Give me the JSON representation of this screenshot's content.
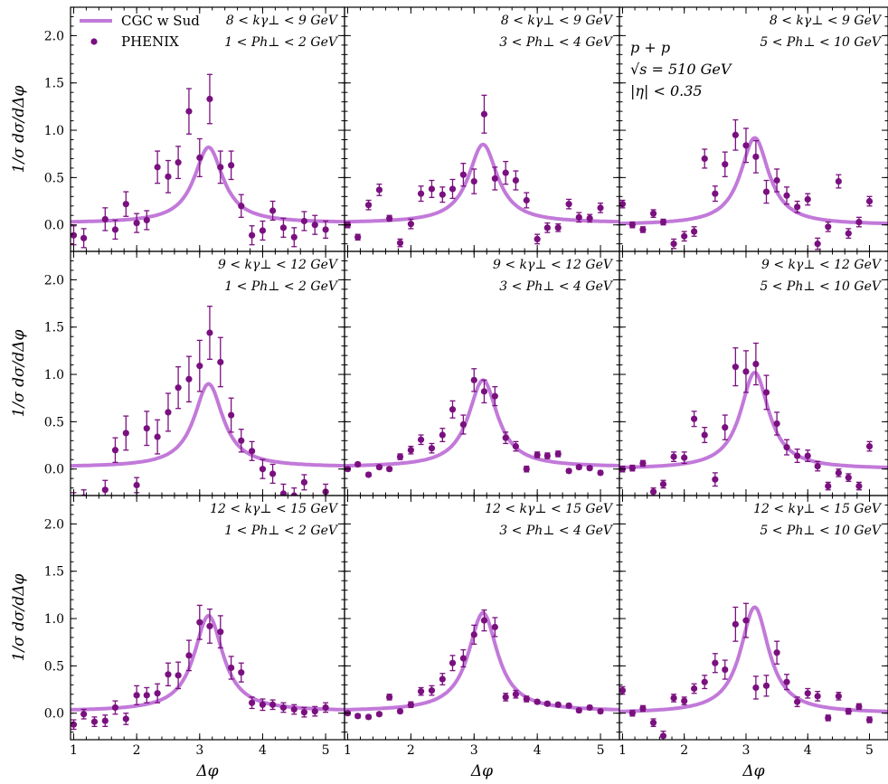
{
  "chart_data": {
    "type": "scatter",
    "layout": "3x3 panel grid",
    "xlabel": "Δφ",
    "ylabel": "1/σ dσ/dΔφ",
    "xlim": [
      0.95,
      5.3
    ],
    "ylim": [
      -0.28,
      2.3
    ],
    "xticks": [
      1,
      2,
      3,
      4,
      5
    ],
    "yticks": [
      0.0,
      0.5,
      1.0,
      1.5,
      2.0
    ],
    "legend": {
      "placement": "top-left of first panel",
      "entries": [
        {
          "label": "CGC w Sud",
          "kind": "line",
          "color": "#c279d9"
        },
        {
          "label": "PHENIX",
          "kind": "marker",
          "color": "#7a107f"
        }
      ]
    },
    "global_annotation": [
      "p + p",
      "√s = 510 GeV",
      "|η| < 0.35"
    ],
    "colors": {
      "theory": "#c279d9",
      "data": "#7a107f"
    },
    "x_points": [
      1.0,
      1.16,
      1.33,
      1.5,
      1.66,
      1.83,
      2.0,
      2.16,
      2.33,
      2.5,
      2.66,
      2.83,
      3.0,
      3.16,
      3.33,
      3.5,
      3.66,
      3.83,
      4.0,
      4.16,
      4.33,
      4.5,
      4.66,
      4.83,
      5.0,
      5.16
    ],
    "panels": [
      {
        "ktrange": "8 < kγ⊥ < 9 GeV",
        "prange": "1 < Ph⊥ < 2 GeV",
        "peak": 0.82,
        "base": 0.02,
        "data": [
          [
            1.0,
            -0.11,
            0.1
          ],
          [
            1.16,
            -0.14,
            0.1
          ],
          [
            1.5,
            0.06,
            0.12
          ],
          [
            1.66,
            -0.05,
            0.1
          ],
          [
            1.83,
            0.22,
            0.13
          ],
          [
            2.0,
            0.02,
            0.1
          ],
          [
            2.16,
            0.05,
            0.1
          ],
          [
            2.33,
            0.61,
            0.17
          ],
          [
            2.5,
            0.51,
            0.17
          ],
          [
            2.66,
            0.66,
            0.17
          ],
          [
            2.83,
            1.2,
            0.24
          ],
          [
            3.0,
            0.71,
            0.2
          ],
          [
            3.16,
            1.33,
            0.26
          ],
          [
            3.33,
            0.61,
            0.17
          ],
          [
            3.5,
            0.63,
            0.15
          ],
          [
            3.66,
            0.2,
            0.12
          ],
          [
            3.83,
            -0.11,
            0.1
          ],
          [
            4.0,
            -0.06,
            0.1
          ],
          [
            4.16,
            0.15,
            0.1
          ],
          [
            4.33,
            -0.03,
            0.1
          ],
          [
            4.5,
            -0.13,
            0.1
          ],
          [
            4.66,
            0.04,
            0.1
          ],
          [
            4.83,
            0.0,
            0.1
          ],
          [
            5.0,
            -0.05,
            0.09
          ]
        ]
      },
      {
        "ktrange": "8 < kγ⊥ < 9 GeV",
        "prange": "3 < Ph⊥ < 4 GeV",
        "peak": 0.85,
        "base": 0.02,
        "data": [
          [
            1.0,
            0.0,
            0.03
          ],
          [
            1.16,
            -0.13,
            0.03
          ],
          [
            1.33,
            0.21,
            0.05
          ],
          [
            1.5,
            0.37,
            0.06
          ],
          [
            1.66,
            0.07,
            0.03
          ],
          [
            1.83,
            -0.19,
            0.04
          ],
          [
            2.0,
            0.01,
            0.05
          ],
          [
            2.16,
            0.33,
            0.08
          ],
          [
            2.33,
            0.38,
            0.09
          ],
          [
            2.5,
            0.32,
            0.08
          ],
          [
            2.66,
            0.38,
            0.1
          ],
          [
            2.83,
            0.53,
            0.12
          ],
          [
            3.0,
            0.46,
            0.13
          ],
          [
            3.16,
            1.17,
            0.2
          ],
          [
            3.33,
            0.49,
            0.12
          ],
          [
            3.5,
            0.55,
            0.12
          ],
          [
            3.66,
            0.47,
            0.1
          ],
          [
            3.83,
            0.26,
            0.08
          ],
          [
            4.0,
            -0.15,
            0.05
          ],
          [
            4.16,
            -0.03,
            0.05
          ],
          [
            4.33,
            -0.03,
            0.04
          ],
          [
            4.5,
            0.22,
            0.05
          ],
          [
            4.66,
            0.08,
            0.05
          ],
          [
            4.83,
            0.07,
            0.04
          ],
          [
            5.0,
            0.18,
            0.05
          ]
        ]
      },
      {
        "ktrange": "8 < kγ⊥ < 9 GeV",
        "prange": "5 < Ph⊥ < 10 GeV",
        "peak": 0.92,
        "base": 0.0,
        "data": [
          [
            1.0,
            0.22,
            0.04
          ],
          [
            1.16,
            -0.0,
            0.03
          ],
          [
            1.33,
            -0.05,
            0.03
          ],
          [
            1.5,
            0.12,
            0.04
          ],
          [
            1.66,
            0.03,
            0.03
          ],
          [
            1.83,
            -0.2,
            0.05
          ],
          [
            2.0,
            -0.12,
            0.05
          ],
          [
            2.16,
            -0.07,
            0.05
          ],
          [
            2.33,
            0.7,
            0.1
          ],
          [
            2.5,
            0.33,
            0.08
          ],
          [
            2.66,
            0.64,
            0.13
          ],
          [
            2.83,
            0.95,
            0.16
          ],
          [
            3.0,
            0.84,
            0.18
          ],
          [
            3.16,
            0.72,
            0.17
          ],
          [
            3.33,
            0.35,
            0.12
          ],
          [
            3.5,
            0.47,
            0.12
          ],
          [
            3.66,
            0.31,
            0.09
          ],
          [
            3.83,
            0.19,
            0.06
          ],
          [
            4.0,
            0.27,
            0.06
          ],
          [
            4.16,
            -0.2,
            0.06
          ],
          [
            4.33,
            -0.02,
            0.05
          ],
          [
            4.5,
            0.46,
            0.07
          ],
          [
            4.66,
            -0.09,
            0.05
          ],
          [
            4.83,
            0.03,
            0.05
          ],
          [
            5.0,
            0.25,
            0.05
          ]
        ]
      },
      {
        "ktrange": "9 < kγ⊥ < 12 GeV",
        "prange": "1 < Ph⊥ < 2 GeV",
        "peak": 0.9,
        "base": 0.02,
        "data": [
          [
            1.0,
            -0.33,
            0.08
          ],
          [
            1.16,
            -0.3,
            0.08
          ],
          [
            1.5,
            -0.22,
            0.1
          ],
          [
            1.66,
            0.2,
            0.13
          ],
          [
            1.83,
            0.38,
            0.18
          ],
          [
            2.0,
            -0.17,
            0.08
          ],
          [
            2.16,
            0.43,
            0.18
          ],
          [
            2.33,
            0.34,
            0.18
          ],
          [
            2.5,
            0.6,
            0.2
          ],
          [
            2.66,
            0.86,
            0.22
          ],
          [
            2.83,
            0.95,
            0.24
          ],
          [
            3.0,
            1.09,
            0.27
          ],
          [
            3.16,
            1.44,
            0.28
          ],
          [
            3.33,
            1.13,
            0.26
          ],
          [
            3.5,
            0.57,
            0.18
          ],
          [
            3.66,
            0.3,
            0.12
          ],
          [
            3.83,
            0.19,
            0.1
          ],
          [
            4.0,
            0.0,
            0.1
          ],
          [
            4.16,
            -0.05,
            0.1
          ],
          [
            4.33,
            -0.26,
            0.1
          ],
          [
            4.5,
            -0.28,
            0.08
          ],
          [
            4.66,
            -0.14,
            0.08
          ],
          [
            4.83,
            -0.38,
            0.08
          ],
          [
            5.0,
            -0.24,
            0.08
          ]
        ]
      },
      {
        "ktrange": "9 < kγ⊥ < 12 GeV",
        "prange": "3 < Ph⊥ < 4 GeV",
        "peak": 0.94,
        "base": 0.02,
        "data": [
          [
            1.0,
            0.0,
            0.02
          ],
          [
            1.16,
            0.05,
            0.02
          ],
          [
            1.33,
            -0.06,
            0.02
          ],
          [
            1.5,
            0.02,
            0.02
          ],
          [
            1.66,
            0.0,
            0.02
          ],
          [
            1.83,
            0.13,
            0.03
          ],
          [
            2.0,
            0.2,
            0.04
          ],
          [
            2.16,
            0.31,
            0.05
          ],
          [
            2.33,
            0.22,
            0.05
          ],
          [
            2.5,
            0.36,
            0.07
          ],
          [
            2.66,
            0.63,
            0.09
          ],
          [
            2.83,
            0.47,
            0.1
          ],
          [
            3.0,
            0.94,
            0.12
          ],
          [
            3.16,
            0.82,
            0.12
          ],
          [
            3.33,
            0.77,
            0.1
          ],
          [
            3.5,
            0.33,
            0.06
          ],
          [
            3.66,
            0.24,
            0.05
          ],
          [
            3.83,
            0.0,
            0.03
          ],
          [
            4.0,
            0.15,
            0.03
          ],
          [
            4.16,
            0.14,
            0.03
          ],
          [
            4.33,
            0.16,
            0.03
          ],
          [
            4.5,
            -0.02,
            0.02
          ],
          [
            4.66,
            0.02,
            0.02
          ],
          [
            4.83,
            0.01,
            0.02
          ],
          [
            5.0,
            -0.04,
            0.02
          ]
        ]
      },
      {
        "ktrange": "9 < kγ⊥ < 12 GeV",
        "prange": "5 < Ph⊥ < 10 GeV",
        "peak": 1.02,
        "base": 0.0,
        "data": [
          [
            1.0,
            0.0,
            0.03
          ],
          [
            1.16,
            0.01,
            0.03
          ],
          [
            1.33,
            0.06,
            0.03
          ],
          [
            1.5,
            -0.24,
            0.04
          ],
          [
            1.66,
            -0.16,
            0.04
          ],
          [
            1.83,
            0.13,
            0.05
          ],
          [
            2.0,
            0.12,
            0.06
          ],
          [
            2.16,
            0.53,
            0.08
          ],
          [
            2.33,
            0.36,
            0.08
          ],
          [
            2.5,
            -0.11,
            0.07
          ],
          [
            2.66,
            0.44,
            0.13
          ],
          [
            2.83,
            1.08,
            0.2
          ],
          [
            3.0,
            1.03,
            0.22
          ],
          [
            3.16,
            1.11,
            0.22
          ],
          [
            3.33,
            0.81,
            0.18
          ],
          [
            3.5,
            0.48,
            0.12
          ],
          [
            3.66,
            0.23,
            0.08
          ],
          [
            3.83,
            0.14,
            0.07
          ],
          [
            4.0,
            0.14,
            0.06
          ],
          [
            4.16,
            0.03,
            0.05
          ],
          [
            4.33,
            -0.18,
            0.04
          ],
          [
            4.5,
            -0.04,
            0.04
          ],
          [
            4.66,
            -0.09,
            0.04
          ],
          [
            4.83,
            -0.18,
            0.04
          ],
          [
            5.0,
            0.24,
            0.05
          ]
        ]
      },
      {
        "ktrange": "12 < kγ⊥ < 15 GeV",
        "prange": "1 < Ph⊥ < 2 GeV",
        "peak": 1.03,
        "base": 0.02,
        "data": [
          [
            1.0,
            -0.12,
            0.05
          ],
          [
            1.16,
            -0.01,
            0.05
          ],
          [
            1.33,
            -0.09,
            0.05
          ],
          [
            1.5,
            -0.08,
            0.06
          ],
          [
            1.66,
            0.06,
            0.07
          ],
          [
            1.83,
            -0.06,
            0.06
          ],
          [
            2.0,
            0.19,
            0.1
          ],
          [
            2.16,
            0.19,
            0.08
          ],
          [
            2.33,
            0.21,
            0.1
          ],
          [
            2.5,
            0.41,
            0.12
          ],
          [
            2.66,
            0.4,
            0.14
          ],
          [
            2.83,
            0.61,
            0.16
          ],
          [
            3.0,
            0.96,
            0.18
          ],
          [
            3.16,
            0.92,
            0.18
          ],
          [
            3.33,
            0.86,
            0.17
          ],
          [
            3.5,
            0.48,
            0.12
          ],
          [
            3.66,
            0.43,
            0.1
          ],
          [
            3.83,
            0.11,
            0.06
          ],
          [
            4.0,
            0.09,
            0.06
          ],
          [
            4.16,
            0.09,
            0.05
          ],
          [
            4.33,
            0.06,
            0.05
          ],
          [
            4.5,
            0.04,
            0.05
          ],
          [
            4.66,
            0.01,
            0.05
          ],
          [
            4.83,
            0.02,
            0.05
          ],
          [
            5.0,
            0.06,
            0.05
          ]
        ]
      },
      {
        "ktrange": "12 < kγ⊥ < 15 GeV",
        "prange": "3 < Ph⊥ < 4 GeV",
        "peak": 1.06,
        "base": 0.02,
        "data": [
          [
            1.0,
            0.0,
            0.02
          ],
          [
            1.16,
            -0.03,
            0.02
          ],
          [
            1.33,
            -0.04,
            0.02
          ],
          [
            1.5,
            -0.01,
            0.02
          ],
          [
            1.66,
            0.17,
            0.03
          ],
          [
            1.83,
            0.02,
            0.02
          ],
          [
            2.0,
            0.09,
            0.03
          ],
          [
            2.16,
            0.23,
            0.04
          ],
          [
            2.33,
            0.24,
            0.05
          ],
          [
            2.5,
            0.36,
            0.06
          ],
          [
            2.66,
            0.53,
            0.08
          ],
          [
            2.83,
            0.58,
            0.09
          ],
          [
            3.0,
            0.83,
            0.1
          ],
          [
            3.16,
            0.98,
            0.11
          ],
          [
            3.33,
            0.91,
            0.1
          ],
          [
            3.5,
            0.17,
            0.04
          ],
          [
            3.66,
            0.2,
            0.04
          ],
          [
            3.83,
            0.15,
            0.03
          ],
          [
            4.0,
            0.12,
            0.02
          ],
          [
            4.16,
            0.1,
            0.02
          ],
          [
            4.33,
            0.09,
            0.02
          ],
          [
            4.5,
            0.08,
            0.02
          ],
          [
            4.66,
            0.03,
            0.02
          ],
          [
            4.83,
            0.06,
            0.02
          ],
          [
            5.0,
            0.02,
            0.02
          ]
        ]
      },
      {
        "ktrange": "12 < kγ⊥ < 15 GeV",
        "prange": "5 < Ph⊥ < 10 GeV",
        "peak": 1.12,
        "base": 0.0,
        "data": [
          [
            1.0,
            0.24,
            0.04
          ],
          [
            1.16,
            -0.0,
            0.03
          ],
          [
            1.33,
            0.05,
            0.03
          ],
          [
            1.5,
            -0.1,
            0.04
          ],
          [
            1.66,
            -0.24,
            0.05
          ],
          [
            1.83,
            0.16,
            0.04
          ],
          [
            2.0,
            0.13,
            0.04
          ],
          [
            2.16,
            0.26,
            0.05
          ],
          [
            2.33,
            0.33,
            0.07
          ],
          [
            2.5,
            0.53,
            0.1
          ],
          [
            2.66,
            0.46,
            0.1
          ],
          [
            2.83,
            0.94,
            0.18
          ],
          [
            3.0,
            0.98,
            0.18
          ],
          [
            3.16,
            0.27,
            0.12
          ],
          [
            3.33,
            0.29,
            0.11
          ],
          [
            3.5,
            0.64,
            0.12
          ],
          [
            3.66,
            0.33,
            0.08
          ],
          [
            3.83,
            0.12,
            0.05
          ],
          [
            4.0,
            0.21,
            0.05
          ],
          [
            4.16,
            0.18,
            0.05
          ],
          [
            4.33,
            -0.05,
            0.03
          ],
          [
            4.5,
            0.18,
            0.04
          ],
          [
            4.66,
            0.02,
            0.03
          ],
          [
            4.83,
            0.07,
            0.03
          ],
          [
            5.0,
            -0.07,
            0.03
          ]
        ]
      }
    ]
  }
}
